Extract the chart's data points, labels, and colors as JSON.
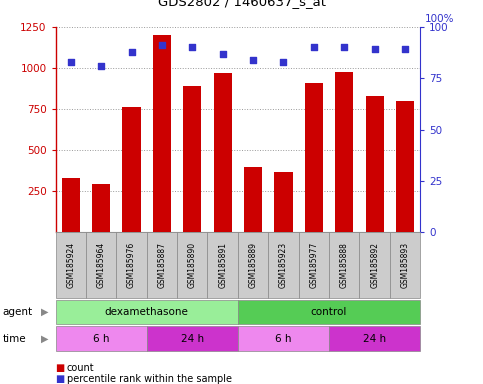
{
  "title": "GDS2802 / 1460637_s_at",
  "samples": [
    "GSM185924",
    "GSM185964",
    "GSM185976",
    "GSM185887",
    "GSM185890",
    "GSM185891",
    "GSM185889",
    "GSM185923",
    "GSM185977",
    "GSM185888",
    "GSM185892",
    "GSM185893"
  ],
  "counts": [
    330,
    295,
    760,
    1200,
    890,
    970,
    395,
    370,
    910,
    975,
    830,
    800
  ],
  "percentiles": [
    83,
    81,
    88,
    91,
    90,
    87,
    84,
    83,
    90,
    90,
    89,
    89
  ],
  "ylim_left": [
    0,
    1250
  ],
  "ylim_right": [
    0,
    100
  ],
  "yticks_left": [
    250,
    500,
    750,
    1000,
    1250
  ],
  "yticks_right": [
    0,
    25,
    50,
    75,
    100
  ],
  "bar_color": "#cc0000",
  "dot_color": "#3333cc",
  "agent_groups": [
    {
      "label": "dexamethasone",
      "start": 0,
      "end": 6,
      "color": "#99ee99"
    },
    {
      "label": "control",
      "start": 6,
      "end": 12,
      "color": "#55cc55"
    }
  ],
  "time_groups": [
    {
      "label": "6 h",
      "start": 0,
      "end": 3,
      "color": "#ee88ee"
    },
    {
      "label": "24 h",
      "start": 3,
      "end": 6,
      "color": "#cc33cc"
    },
    {
      "label": "6 h",
      "start": 6,
      "end": 9,
      "color": "#ee88ee"
    },
    {
      "label": "24 h",
      "start": 9,
      "end": 12,
      "color": "#cc33cc"
    }
  ],
  "agent_label": "agent",
  "time_label": "time",
  "legend_count_label": "count",
  "legend_pct_label": "percentile rank within the sample",
  "grid_color": "#999999",
  "bg_color": "#ffffff",
  "label_color_left": "#cc0000",
  "label_color_right": "#3333cc",
  "sample_box_color": "#cccccc",
  "sample_box_edge": "#888888"
}
